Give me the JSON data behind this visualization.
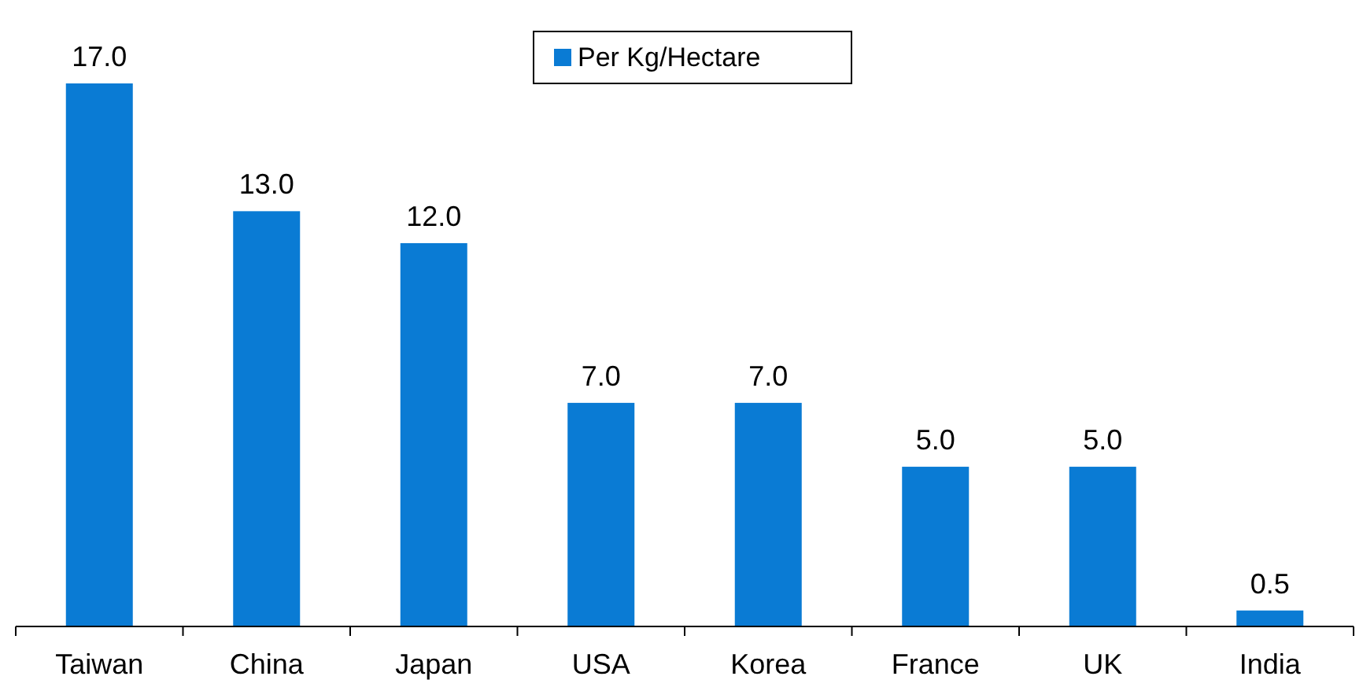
{
  "chart_data": {
    "type": "bar",
    "categories": [
      "Taiwan",
      "China",
      "Japan",
      "USA",
      "Korea",
      "France",
      "UK",
      "India"
    ],
    "series": [
      {
        "name": "Per Kg/Hectare",
        "color": "#0a7bd4",
        "values": [
          17.0,
          13.0,
          12.0,
          7.0,
          7.0,
          5.0,
          5.0,
          0.5
        ],
        "value_labels": [
          "17.0",
          "13.0",
          "12.0",
          "7.0",
          "7.0",
          "5.0",
          "5.0",
          "0.5"
        ]
      }
    ],
    "legend": "top"
  }
}
